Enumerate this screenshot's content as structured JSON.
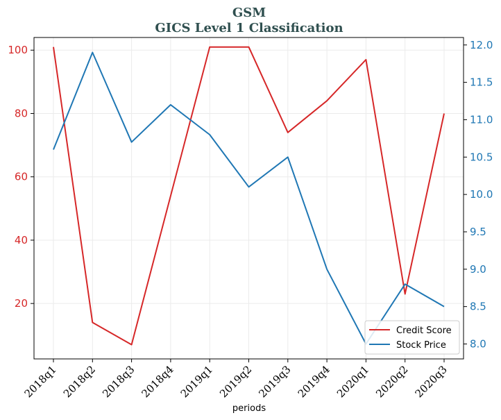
{
  "chart_data": {
    "type": "line",
    "title": "GSM",
    "subtitle": "GICS Level 1 Classification",
    "xlabel": "periods",
    "categories": [
      "2018q1",
      "2018q2",
      "2018q3",
      "2018q4",
      "2019q1",
      "2019q2",
      "2019q3",
      "2019q4",
      "2020q1",
      "2020q2",
      "2020q3"
    ],
    "left_axis": {
      "ylim": [
        2.5,
        104
      ],
      "ticks": [
        20,
        40,
        60,
        80,
        100
      ],
      "color": "#d62728"
    },
    "right_axis": {
      "ylim": [
        7.8,
        12.1
      ],
      "ticks": [
        8.0,
        8.5,
        9.0,
        9.5,
        10.0,
        10.5,
        11.0,
        11.5,
        12.0
      ],
      "tick_labels": [
        "8.0",
        "8.5",
        "9.0",
        "9.5",
        "10.0",
        "10.5",
        "11.0",
        "11.5",
        "12.0"
      ],
      "color": "#1f77b4"
    },
    "series": [
      {
        "name": "Credit Score",
        "axis": "left",
        "color": "#d62728",
        "values": [
          101,
          14,
          7,
          54,
          101,
          101,
          74,
          84,
          97,
          23,
          80
        ]
      },
      {
        "name": "Stock Price",
        "axis": "right",
        "color": "#1f77b4",
        "values": [
          10.6,
          11.9,
          10.7,
          11.2,
          10.8,
          10.1,
          10.5,
          9.0,
          8.0,
          8.8,
          8.5
        ]
      }
    ],
    "grid": true,
    "legend_position": "lower-right"
  }
}
